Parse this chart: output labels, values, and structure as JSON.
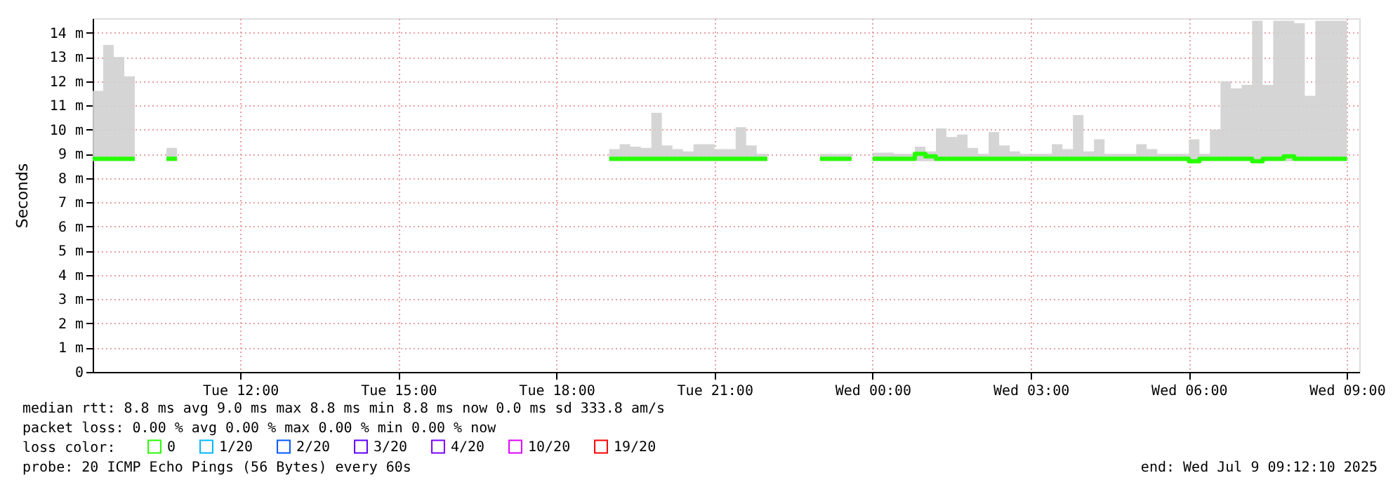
{
  "chart_data": {
    "type": "step",
    "ylabel": "Seconds",
    "legend_title": "loss color:",
    "legend": "bottom left",
    "grid": true,
    "line_style": "solid",
    "marker": "none",
    "xlim": [
      "2025-07-08T09:12",
      "2025-07-09T09:14"
    ],
    "xticks": [
      {
        "value": "2025-07-08T12:00",
        "label": "Tue 12:00"
      },
      {
        "value": "2025-07-08T15:00",
        "label": "Tue 15:00"
      },
      {
        "value": "2025-07-08T18:00",
        "label": "Tue 18:00"
      },
      {
        "value": "2025-07-08T21:00",
        "label": "Tue 21:00"
      },
      {
        "value": "2025-07-09T00:00",
        "label": "Wed 00:00"
      },
      {
        "value": "2025-07-09T03:00",
        "label": "Wed 03:00"
      },
      {
        "value": "2025-07-09T06:00",
        "label": "Wed 06:00"
      },
      {
        "value": "2025-07-09T09:00",
        "label": "Wed 09:00"
      }
    ],
    "ylim": [
      0,
      14.6
    ],
    "yticks": [
      0,
      {
        "value": 1,
        "label": "1 m"
      },
      {
        "value": 2,
        "label": "2 m"
      },
      {
        "value": 3,
        "label": "3 m"
      },
      {
        "value": 4,
        "label": "4 m"
      },
      {
        "value": 5,
        "label": "5 m"
      },
      {
        "value": 6,
        "label": "6 m"
      },
      {
        "value": 7,
        "label": "7 m"
      },
      {
        "value": 8,
        "label": "8 m"
      },
      {
        "value": 9,
        "label": "9 m"
      },
      {
        "value": 10,
        "label": "10 m"
      },
      {
        "value": 11,
        "label": "11 m"
      },
      {
        "value": 12,
        "label": "12 m"
      },
      {
        "value": 13,
        "label": "13 m"
      },
      {
        "value": 14,
        "label": "14 m"
      }
    ],
    "x": [
      "2025-07-08T09:12",
      "2025-07-08T09:24",
      "2025-07-08T09:36",
      "2025-07-08T09:48",
      "2025-07-08T10:00",
      "2025-07-08T10:20",
      "2025-07-08T10:36",
      "2025-07-08T10:48",
      "2025-07-08T15:00",
      "2025-07-08T19:00",
      "2025-07-08T19:12",
      "2025-07-08T19:24",
      "2025-07-08T19:36",
      "2025-07-08T19:48",
      "2025-07-08T20:00",
      "2025-07-08T20:12",
      "2025-07-08T20:24",
      "2025-07-08T20:36",
      "2025-07-08T20:48",
      "2025-07-08T21:00",
      "2025-07-08T21:12",
      "2025-07-08T21:24",
      "2025-07-08T21:36",
      "2025-07-08T21:48",
      "2025-07-08T22:00",
      "2025-07-08T22:30",
      "2025-07-08T23:00",
      "2025-07-08T23:12",
      "2025-07-08T23:24",
      "2025-07-08T23:36",
      "2025-07-08T23:48",
      "2025-07-09T00:00",
      "2025-07-09T00:12",
      "2025-07-09T00:24",
      "2025-07-09T00:36",
      "2025-07-09T00:48",
      "2025-07-09T01:00",
      "2025-07-09T01:12",
      "2025-07-09T01:24",
      "2025-07-09T01:36",
      "2025-07-09T01:48",
      "2025-07-09T02:00",
      "2025-07-09T02:12",
      "2025-07-09T02:24",
      "2025-07-09T02:36",
      "2025-07-09T02:48",
      "2025-07-09T03:00",
      "2025-07-09T03:12",
      "2025-07-09T03:24",
      "2025-07-09T03:36",
      "2025-07-09T03:48",
      "2025-07-09T04:00",
      "2025-07-09T04:12",
      "2025-07-09T04:24",
      "2025-07-09T04:36",
      "2025-07-09T04:48",
      "2025-07-09T05:00",
      "2025-07-09T05:12",
      "2025-07-09T05:24",
      "2025-07-09T05:36",
      "2025-07-09T05:48",
      "2025-07-09T06:00",
      "2025-07-09T06:12",
      "2025-07-09T06:24",
      "2025-07-09T06:36",
      "2025-07-09T06:48",
      "2025-07-09T07:00",
      "2025-07-09T07:12",
      "2025-07-09T07:24",
      "2025-07-09T07:36",
      "2025-07-09T07:48",
      "2025-07-09T08:00",
      "2025-07-09T08:12",
      "2025-07-09T08:24",
      "2025-07-09T08:36",
      "2025-07-09T08:48",
      "2025-07-09T09:00"
    ],
    "series": [
      {
        "name": "0",
        "color": "#26ff00",
        "values": [
          8.8,
          8.8,
          8.8,
          8.8,
          8.8,
          null,
          8.8,
          8.8,
          null,
          8.8,
          8.8,
          8.8,
          8.8,
          8.8,
          8.8,
          8.8,
          8.8,
          8.8,
          8.8,
          8.8,
          8.8,
          8.8,
          8.8,
          8.8,
          8.8,
          null,
          8.8,
          8.8,
          8.8,
          8.8,
          null,
          8.8,
          8.8,
          8.8,
          8.8,
          9.0,
          8.9,
          8.8,
          8.8,
          8.8,
          8.8,
          8.8,
          8.8,
          8.8,
          8.8,
          8.8,
          8.8,
          8.8,
          8.8,
          8.8,
          8.8,
          8.8,
          8.8,
          8.8,
          8.8,
          8.8,
          8.8,
          8.8,
          8.8,
          8.8,
          8.8,
          8.7,
          8.8,
          8.8,
          8.8,
          8.8,
          8.8,
          8.7,
          8.8,
          8.8,
          8.9,
          8.8,
          8.8,
          8.8,
          8.8,
          8.8,
          8.8
        ],
        "lower": [
          8.7,
          8.7,
          8.7,
          8.7,
          8.7,
          null,
          8.7,
          8.7,
          null,
          8.7,
          8.7,
          8.7,
          8.7,
          8.7,
          8.7,
          8.7,
          8.7,
          8.7,
          8.7,
          8.7,
          8.7,
          8.7,
          8.7,
          8.7,
          8.7,
          null,
          8.7,
          8.7,
          8.7,
          8.7,
          null,
          8.7,
          8.7,
          8.7,
          8.7,
          8.7,
          8.7,
          8.7,
          8.7,
          8.7,
          8.7,
          8.7,
          8.7,
          8.7,
          8.7,
          8.7,
          8.7,
          8.7,
          8.7,
          8.7,
          8.7,
          8.7,
          8.7,
          8.7,
          8.7,
          8.7,
          8.7,
          8.7,
          8.7,
          8.7,
          8.7,
          8.7,
          8.7,
          8.7,
          8.7,
          8.7,
          8.7,
          8.7,
          8.7,
          8.7,
          8.7,
          8.7,
          8.7,
          8.7,
          8.7,
          8.7,
          8.7
        ],
        "upper": [
          11.6,
          13.5,
          13.0,
          12.2,
          12.2,
          null,
          9.25,
          9.25,
          null,
          9.2,
          9.4,
          9.3,
          9.25,
          10.7,
          9.35,
          9.2,
          9.1,
          9.4,
          9.4,
          9.2,
          9.2,
          10.1,
          9.35,
          9.0,
          9.0,
          null,
          9.0,
          9.0,
          9.0,
          9.0,
          null,
          9.05,
          9.05,
          9.0,
          9.0,
          9.3,
          9.1,
          10.05,
          9.7,
          9.8,
          9.25,
          9.0,
          9.9,
          9.35,
          9.1,
          9.0,
          9.0,
          9.0,
          9.4,
          9.2,
          10.6,
          9.1,
          9.6,
          9.0,
          9.0,
          9.0,
          9.4,
          9.2,
          9.0,
          9.0,
          9.0,
          9.6,
          9.0,
          10.0,
          12.0,
          11.7,
          11.85,
          14.5,
          11.85,
          14.5,
          14.5,
          14.4,
          11.4,
          14.5,
          14.5,
          14.5,
          14.5
        ]
      },
      {
        "name": "1/20",
        "color": "#00b8ff",
        "values": [
          null,
          null,
          null,
          null,
          null,
          null,
          null,
          null,
          null,
          null,
          null,
          null,
          null,
          null,
          null,
          null,
          null,
          null,
          null,
          null,
          null,
          null,
          null,
          null,
          null,
          null,
          null,
          null,
          null,
          null,
          null,
          null,
          null,
          null,
          null,
          null,
          null,
          null,
          null,
          null,
          null,
          null,
          null,
          null,
          null,
          null,
          null,
          null,
          null,
          null,
          null,
          null,
          null,
          null,
          null,
          null,
          null,
          null,
          null,
          null,
          null,
          null,
          null,
          null,
          null,
          null,
          null,
          null,
          null,
          null,
          null,
          null,
          null,
          null,
          null,
          null,
          null
        ]
      },
      {
        "name": "2/20",
        "color": "#0059ff",
        "values": [
          null,
          null,
          null,
          null,
          null,
          null,
          null,
          null,
          null,
          null,
          null,
          null,
          null,
          null,
          null,
          null,
          null,
          null,
          null,
          null,
          null,
          null,
          null,
          null,
          null,
          null,
          null,
          null,
          null,
          null,
          null,
          null,
          null,
          null,
          null,
          null,
          null,
          null,
          null,
          null,
          null,
          null,
          null,
          null,
          null,
          null,
          null,
          null,
          null,
          null,
          null,
          null,
          null,
          null,
          null,
          null,
          null,
          null,
          null,
          null,
          null,
          null,
          null,
          null,
          null,
          null,
          null,
          null,
          null,
          null,
          null,
          null,
          null,
          null,
          null,
          null,
          null
        ]
      },
      {
        "name": "3/20",
        "color": "#5e00ff",
        "values": [
          null,
          null,
          null,
          null,
          null,
          null,
          null,
          null,
          null,
          null,
          null,
          null,
          null,
          null,
          null,
          null,
          null,
          null,
          null,
          null,
          null,
          null,
          null,
          null,
          null,
          null,
          null,
          null,
          null,
          null,
          null,
          null,
          null,
          null,
          null,
          null,
          null,
          null,
          null,
          null,
          null,
          null,
          null,
          null,
          null,
          null,
          null,
          null,
          null,
          null,
          null,
          null,
          null,
          null,
          null,
          null,
          null,
          null,
          null,
          null,
          null,
          null,
          null,
          null,
          null,
          null,
          null,
          null,
          null,
          null,
          null,
          null,
          null,
          null,
          null,
          null,
          null
        ]
      },
      {
        "name": "4/20",
        "color": "#7e00ff",
        "values": [
          null,
          null,
          null,
          null,
          null,
          null,
          null,
          null,
          null,
          null,
          null,
          null,
          null,
          null,
          null,
          null,
          null,
          null,
          null,
          null,
          null,
          null,
          null,
          null,
          null,
          null,
          null,
          null,
          null,
          null,
          null,
          null,
          null,
          null,
          null,
          null,
          null,
          null,
          null,
          null,
          null,
          null,
          null,
          null,
          null,
          null,
          null,
          null,
          null,
          null,
          null,
          null,
          null,
          null,
          null,
          null,
          null,
          null,
          null,
          null,
          null,
          null,
          null,
          null,
          null,
          null,
          null,
          null,
          null,
          null,
          null,
          null,
          null,
          null,
          null,
          null,
          null
        ]
      },
      {
        "name": "10/20",
        "color": "#dd00ff",
        "values": [
          null,
          null,
          null,
          null,
          null,
          null,
          null,
          null,
          null,
          null,
          null,
          null,
          null,
          null,
          null,
          null,
          null,
          null,
          null,
          null,
          null,
          null,
          null,
          null,
          null,
          null,
          null,
          null,
          null,
          null,
          null,
          null,
          null,
          null,
          null,
          null,
          null,
          null,
          null,
          null,
          null,
          null,
          null,
          null,
          null,
          null,
          null,
          null,
          null,
          null,
          null,
          null,
          null,
          null,
          null,
          null,
          null,
          null,
          null,
          null,
          null,
          null,
          null,
          null,
          null,
          null,
          null,
          null,
          null,
          null,
          null,
          null,
          null,
          null,
          null,
          null,
          null
        ]
      },
      {
        "name": "19/20",
        "color": "#ff0000",
        "values": [
          null,
          null,
          null,
          null,
          null,
          null,
          null,
          null,
          null,
          null,
          null,
          null,
          null,
          null,
          null,
          null,
          null,
          null,
          null,
          null,
          null,
          null,
          null,
          null,
          null,
          null,
          null,
          null,
          null,
          null,
          null,
          null,
          null,
          null,
          null,
          null,
          null,
          null,
          null,
          null,
          null,
          null,
          null,
          null,
          null,
          null,
          null,
          null,
          null,
          null,
          null,
          null,
          null,
          null,
          null,
          null,
          null,
          null,
          null,
          null,
          null,
          null,
          null,
          null,
          null,
          null,
          null,
          null,
          null,
          null,
          null,
          null,
          null,
          null,
          null,
          null,
          null
        ]
      }
    ],
    "annotations": [
      "median rtt:  8.8 ms avg  9.0 ms max  8.8 ms min  8.8 ms now  0.0 ms sd  333.8   am/s",
      "packet loss: 0.00 % avg  0.00 % max  0.00 % min  0.00 % now",
      "probe:       20 ICMP Echo Pings (56 Bytes) every 60s",
      "end: Wed Jul  9 09:12:10 2025"
    ]
  }
}
